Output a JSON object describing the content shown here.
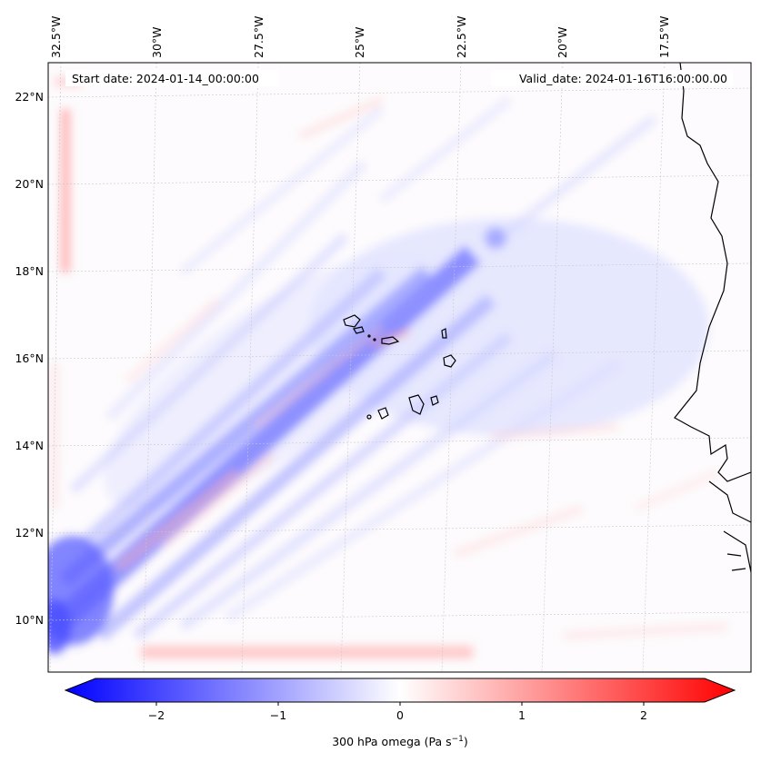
{
  "map": {
    "start_date_label": "Start date: 2024-01-14_00:00:00",
    "valid_date_label": "Valid_date: 2024-01-16T16:00:00.00",
    "lon_ticks": [
      "32.5°W",
      "30°W",
      "27.5°W",
      "25°W",
      "22.5°W",
      "20°W",
      "17.5°W"
    ],
    "lat_ticks": [
      "22°N",
      "20°N",
      "18°N",
      "16°N",
      "14°N",
      "12°N",
      "10°N"
    ]
  },
  "colorbar": {
    "ticks": [
      "−2",
      "−1",
      "0",
      "1",
      "2"
    ],
    "label_main": "300 hPa omega (Pa s",
    "label_sup": "−1",
    "label_end": ")",
    "min_color": "#0000ff",
    "mid_color": "#ffffff",
    "max_color": "#ff0000"
  }
}
